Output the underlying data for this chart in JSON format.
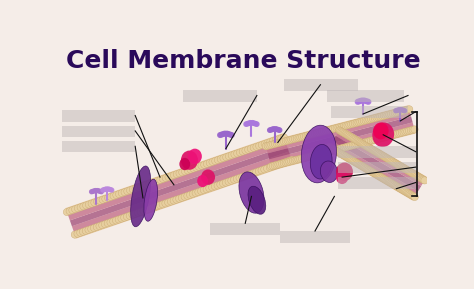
{
  "title": "Cell Membrane Structure",
  "title_fontsize": 18,
  "title_fontweight": "bold",
  "title_color": "#2a0a5a",
  "background_color": "#f5ede8",
  "fig_width": 4.74,
  "fig_height": 2.89,
  "dpi": 100,
  "head_color": "#e8d4a8",
  "tail_color_outer": "#d4907a",
  "tail_color_inner": "#cc7090",
  "membrane_fill": "#d4607a",
  "protein_purple": "#7a35a0",
  "protein_pink": "#dd1166",
  "protein_dark_purple": "#5a1878",
  "glyco_color": "#9966cc",
  "label_gray": "#c0b8b8",
  "pointer_color": "#111111"
}
